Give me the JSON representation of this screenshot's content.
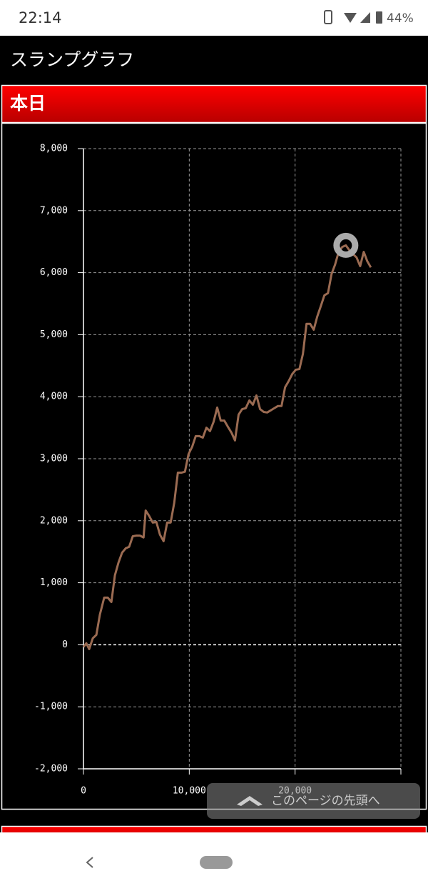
{
  "status_bar": {
    "time": "22:14",
    "battery": "44%"
  },
  "app_bar": {
    "title": "スランプグラフ"
  },
  "section": {
    "title": "本日"
  },
  "chart_data": {
    "type": "line",
    "x": [
      0,
      270,
      540,
      880,
      1220,
      1550,
      1960,
      2300,
      2640,
      2970,
      3310,
      3650,
      3990,
      4320,
      4660,
      5000,
      5340,
      5680,
      5880,
      6220,
      6550,
      6890,
      7230,
      7570,
      7910,
      8240,
      8580,
      8920,
      9260,
      9590,
      9930,
      10270,
      10610,
      10950,
      11280,
      11620,
      11960,
      12300,
      12640,
      12970,
      13310,
      13650,
      13990,
      14320,
      14660,
      15000,
      15340,
      15680,
      16010,
      16350,
      16690,
      17030,
      17360,
      17700,
      18040,
      18380,
      18720,
      19050,
      19390,
      19730,
      20070,
      20410,
      20740,
      21080,
      21420,
      21760,
      22090,
      22430,
      22770,
      23110,
      23450,
      23780,
      24120,
      24460,
      24800,
      25140,
      25470,
      25810,
      26150,
      26490,
      26820,
      27160
    ],
    "series": [
      {
        "color": "#9b6b52",
        "values": [
          -35,
          25,
          -70,
          105,
          160,
          485,
          760,
          760,
          690,
          1120,
          1325,
          1485,
          1555,
          1580,
          1750,
          1760,
          1760,
          1730,
          2165,
          2075,
          1970,
          1980,
          1775,
          1670,
          1970,
          1970,
          2290,
          2775,
          2775,
          2790,
          3075,
          3190,
          3365,
          3365,
          3340,
          3500,
          3445,
          3595,
          3825,
          3615,
          3615,
          3515,
          3420,
          3295,
          3710,
          3800,
          3815,
          3940,
          3870,
          4020,
          3800,
          3755,
          3745,
          3780,
          3815,
          3850,
          3850,
          4150,
          4250,
          4365,
          4435,
          4445,
          4690,
          5175,
          5175,
          5080,
          5290,
          5460,
          5635,
          5670,
          5980,
          6130,
          6335,
          6415,
          6440,
          6360,
          6300,
          6245,
          6105,
          6335,
          6185,
          6085
        ]
      }
    ],
    "xlim": [
      0,
      30000
    ],
    "ylim": [
      -2000,
      8000
    ],
    "xticks": [
      0,
      {
        "value": 10000,
        "label": "10,000"
      },
      {
        "value": 20000,
        "label": "20,000"
      }
    ],
    "yticks": [
      {
        "value": -2000,
        "label": "-2,000"
      },
      {
        "value": -1000,
        "label": "-1,000"
      },
      0,
      {
        "value": 1000,
        "label": "1,000"
      },
      {
        "value": 2000,
        "label": "2,000"
      },
      {
        "value": 3000,
        "label": "3,000"
      },
      {
        "value": 4000,
        "label": "4,000"
      },
      {
        "value": 5000,
        "label": "5,000"
      },
      {
        "value": 6000,
        "label": "6,000"
      },
      {
        "value": 7000,
        "label": "7,000"
      },
      {
        "value": 8000,
        "label": "8,000"
      }
    ],
    "grid": true
  },
  "scroll_top_button": {
    "label": "このページの先頭へ"
  }
}
